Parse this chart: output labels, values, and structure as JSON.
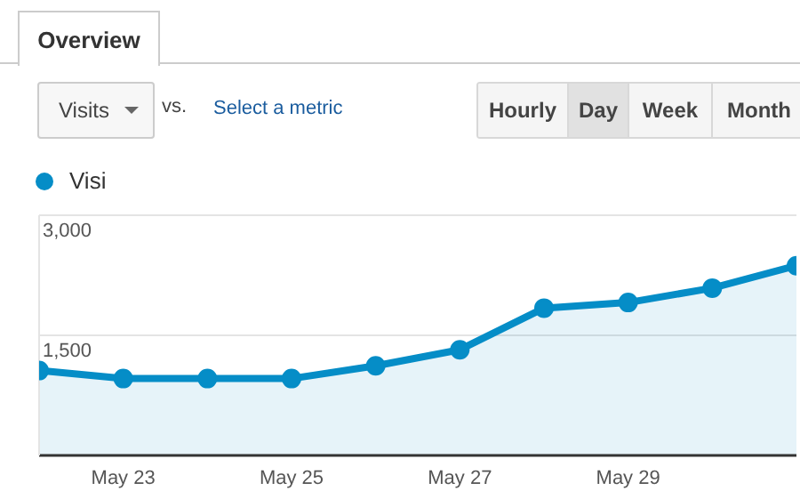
{
  "chart_data": {
    "type": "area",
    "categories": [
      null,
      "May 23",
      null,
      "May 25",
      null,
      "May 27",
      null,
      "May 29",
      null,
      null
    ],
    "series": [
      {
        "name": "Visi",
        "color": "#058dc7",
        "values": [
          1060,
          960,
          960,
          960,
          1120,
          1320,
          1840,
          1910,
          2090,
          2370
        ]
      }
    ],
    "ylim": [
      0,
      3000
    ],
    "yticks": [
      {
        "value": 1500,
        "label": "1,500"
      },
      {
        "value": 3000,
        "label": "3,000"
      }
    ],
    "grid": "y",
    "legend": "top left",
    "marker": "circle",
    "annotations": [
      "Overview",
      "Visits",
      "vs.",
      "Select a metric",
      "Hourly",
      "Day",
      "Week",
      "Month"
    ]
  }
}
